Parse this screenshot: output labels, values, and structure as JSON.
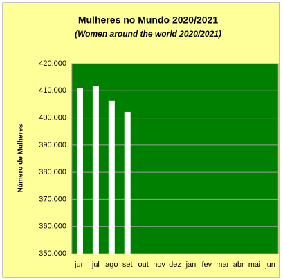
{
  "chart_data": {
    "type": "bar",
    "title": "Mulheres no Mundo 2020/2021",
    "subtitle": "(Women around the world 2020/2021)",
    "y_label": "Número de Mulheres",
    "categories": [
      "jun",
      "jul",
      "ago",
      "set",
      "out",
      "nov",
      "dez",
      "jan",
      "fev",
      "mar",
      "abr",
      "mai",
      "jun"
    ],
    "values": [
      411000,
      411800,
      406300,
      402200,
      null,
      null,
      null,
      null,
      null,
      null,
      null,
      null,
      null
    ],
    "color": "#ffffff",
    "plot_background": "#008000",
    "background": "#ffff99",
    "ylim": [
      350000,
      420000
    ],
    "yticks": [
      {
        "value": 350000,
        "label": "350.000"
      },
      {
        "value": 360000,
        "label": "360.000"
      },
      {
        "value": 370000,
        "label": "370.000"
      },
      {
        "value": 380000,
        "label": "380.000"
      },
      {
        "value": 390000,
        "label": "390.000"
      },
      {
        "value": 400000,
        "label": "400.000"
      },
      {
        "value": 410000,
        "label": "410.000"
      },
      {
        "value": 420000,
        "label": "420.000"
      }
    ],
    "grid": true
  }
}
